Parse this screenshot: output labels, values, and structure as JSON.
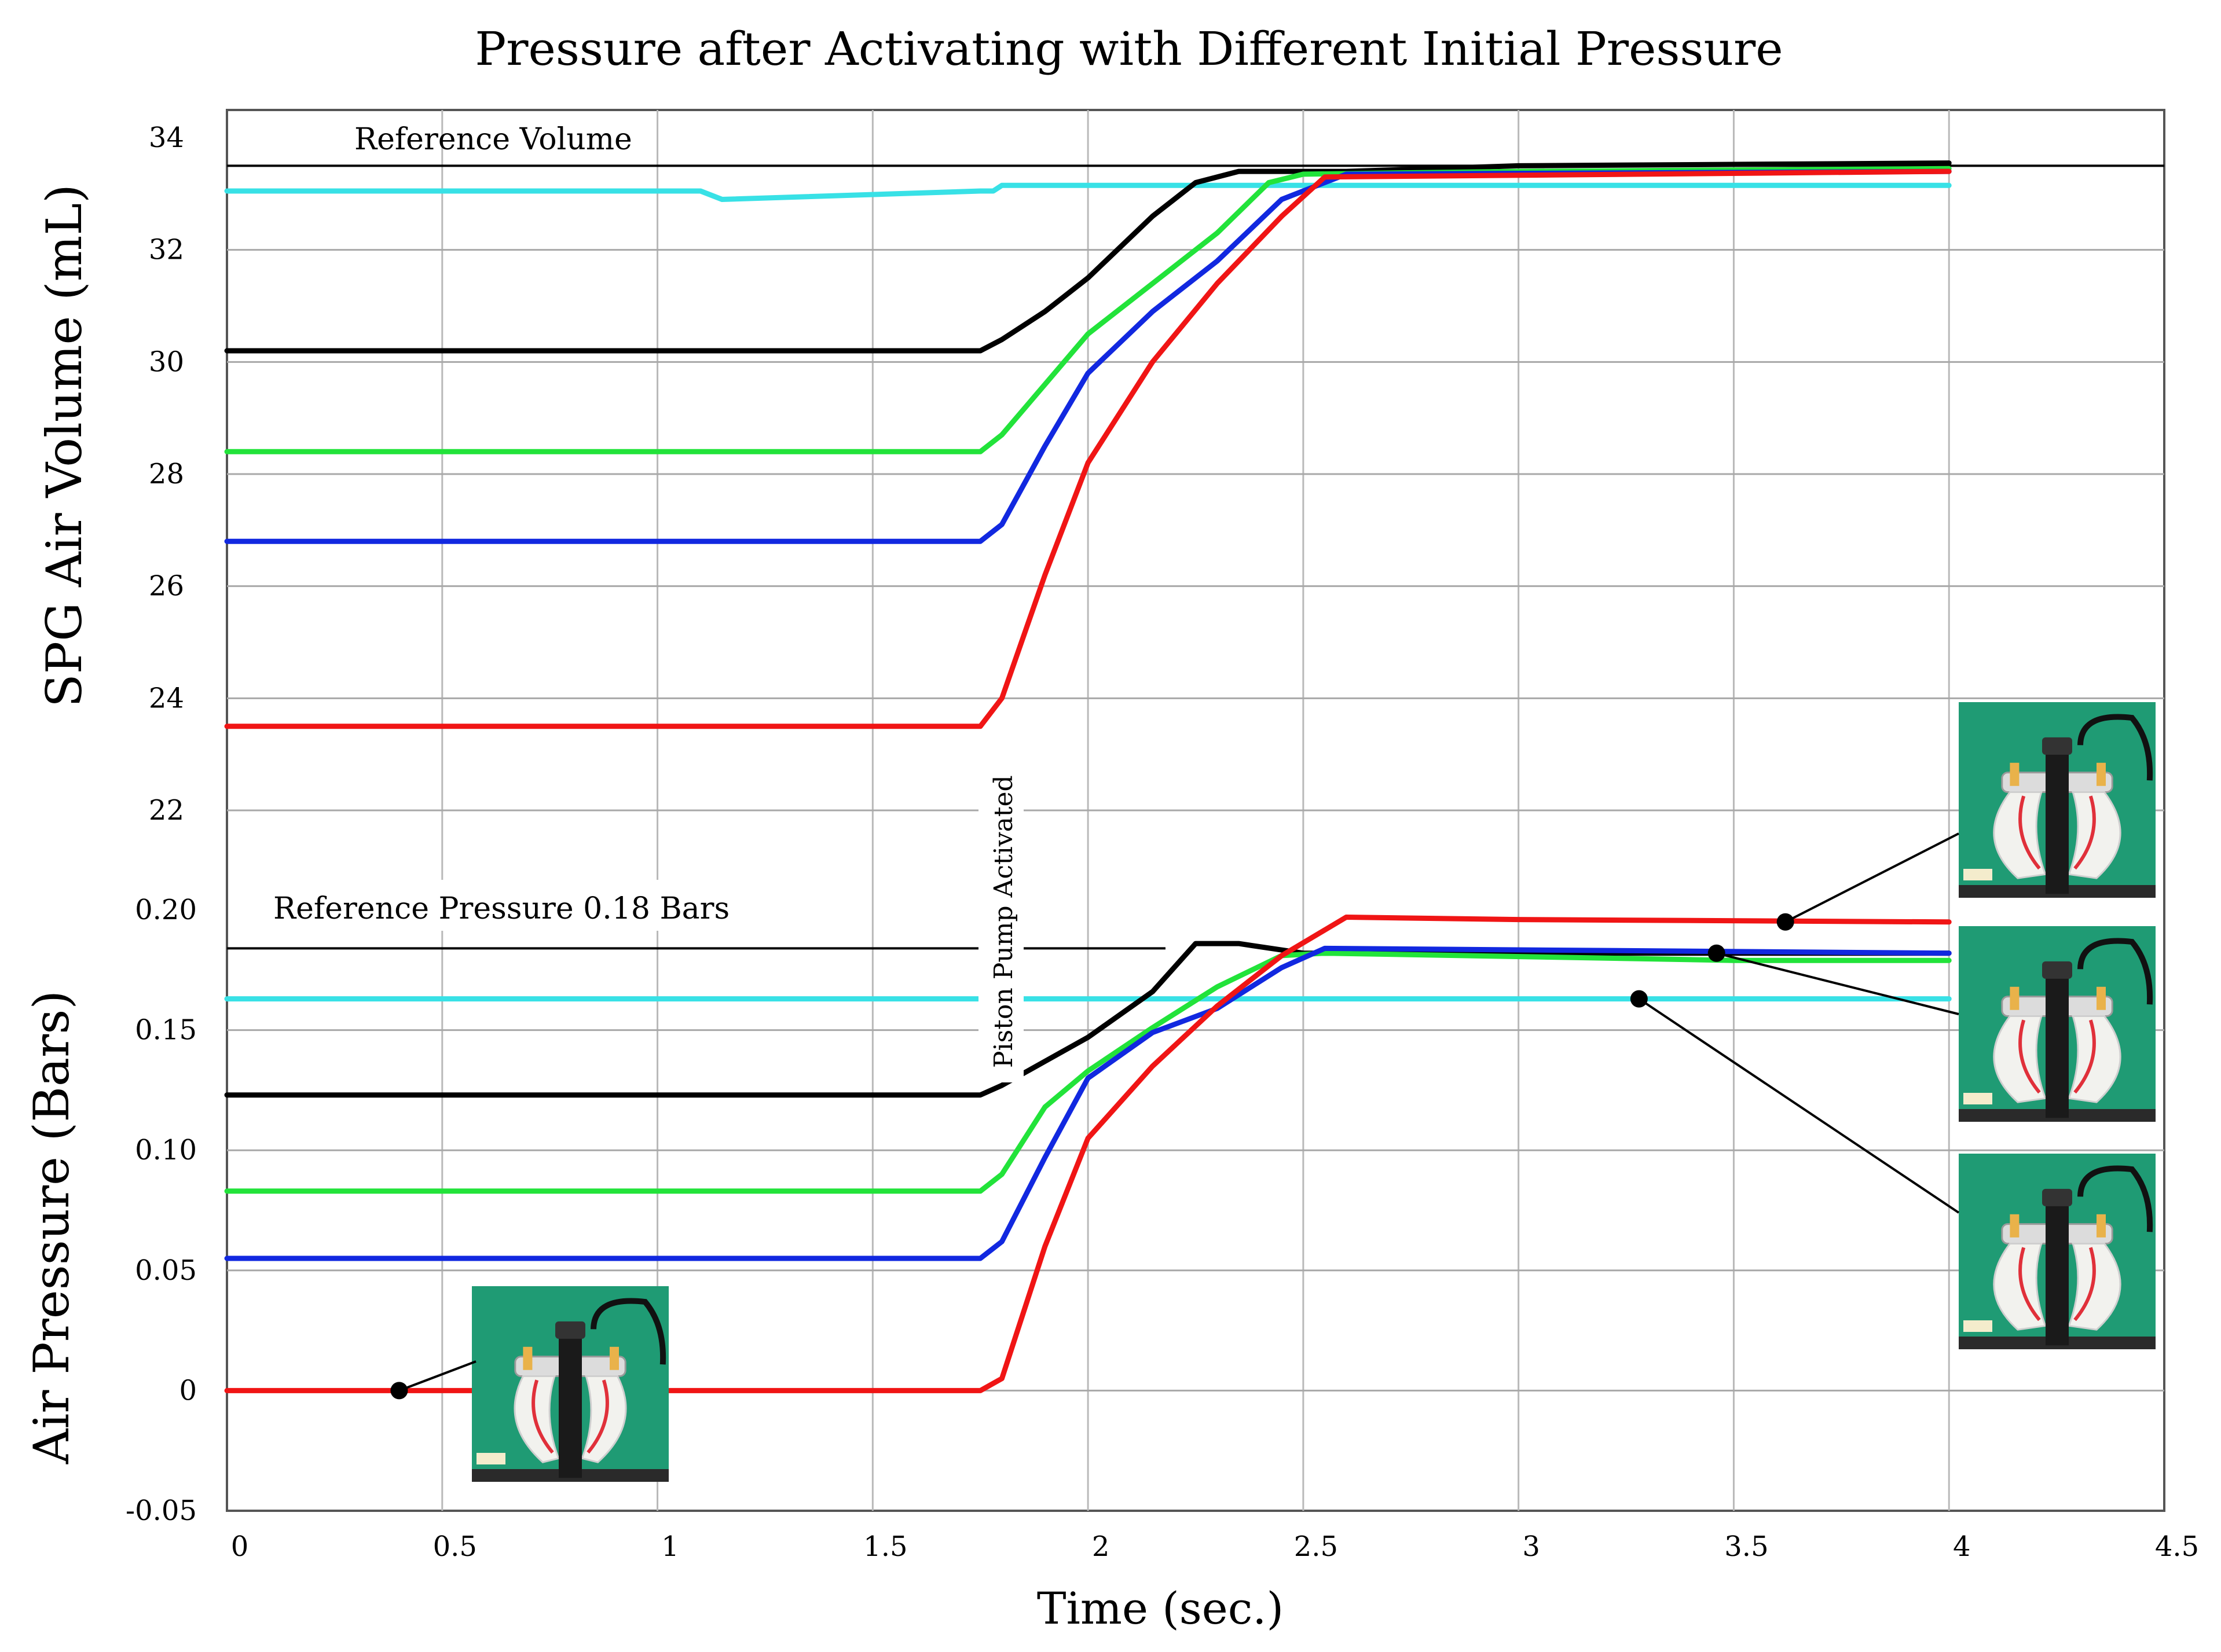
{
  "chart_data": {
    "type": "line",
    "title": "Pressure after Activating with Different Initial Pressure",
    "xlabel": "Time (sec.)",
    "xlim": [
      0,
      4.5
    ],
    "xticks": [
      "0",
      "0.5",
      "1",
      "1.5",
      "2",
      "2.5",
      "3",
      "3.5",
      "4",
      "4.5"
    ],
    "volume_panel": {
      "ylabel": "SPG Air Volume (mL)",
      "ylim": [
        22,
        34
      ],
      "yticks": [
        "22",
        "24",
        "26",
        "28",
        "30",
        "32",
        "34"
      ],
      "reference": {
        "label": "Reference Volume",
        "value": 33.5
      },
      "series": [
        {
          "name": "cyan",
          "color": "#38e1e6",
          "x": [
            0,
            1.1,
            1.15,
            1.75,
            1.78,
            1.8,
            4.0
          ],
          "y": [
            33.05,
            33.05,
            32.9,
            33.05,
            33.05,
            33.15,
            33.15
          ]
        },
        {
          "name": "black",
          "color": "#000000",
          "x": [
            0,
            1.75,
            1.8,
            1.9,
            2.0,
            2.15,
            2.25,
            2.35,
            2.6,
            3.0,
            4.0
          ],
          "y": [
            30.2,
            30.2,
            30.4,
            30.9,
            31.5,
            32.6,
            33.2,
            33.4,
            33.4,
            33.5,
            33.55
          ]
        },
        {
          "name": "green",
          "color": "#22e33a",
          "x": [
            0,
            1.75,
            1.8,
            1.9,
            2.0,
            2.15,
            2.3,
            2.42,
            2.5,
            3.0,
            4.0
          ],
          "y": [
            28.4,
            28.4,
            28.7,
            29.6,
            30.5,
            31.4,
            32.3,
            33.2,
            33.35,
            33.4,
            33.45
          ]
        },
        {
          "name": "blue",
          "color": "#1128e0",
          "x": [
            0,
            1.75,
            1.8,
            1.9,
            2.0,
            2.15,
            2.3,
            2.45,
            2.6,
            4.0
          ],
          "y": [
            26.8,
            26.8,
            27.1,
            28.5,
            29.8,
            30.9,
            31.8,
            32.9,
            33.35,
            33.4
          ]
        },
        {
          "name": "red",
          "color": "#f01515",
          "x": [
            0,
            1.75,
            1.8,
            1.9,
            2.0,
            2.15,
            2.3,
            2.45,
            2.55,
            4.0
          ],
          "y": [
            23.5,
            23.5,
            24.0,
            26.2,
            28.2,
            30.0,
            31.4,
            32.6,
            33.3,
            33.4
          ]
        }
      ]
    },
    "pressure_panel": {
      "ylabel": "Air Pressure (Bars)",
      "ylim": [
        -0.05,
        0.2
      ],
      "yticks": [
        "-0.05",
        "0",
        "0.05",
        "0.10",
        "0.15",
        "0.20"
      ],
      "reference": {
        "label": "Reference  Pressure  0.18 Bars",
        "value": 0.184
      },
      "series": [
        {
          "name": "cyan",
          "color": "#38e1e6",
          "x": [
            0,
            4.0
          ],
          "y": [
            0.163,
            0.163
          ]
        },
        {
          "name": "black",
          "color": "#000000",
          "x": [
            0,
            1.75,
            1.8,
            1.9,
            2.0,
            2.15,
            2.25,
            2.35,
            2.5,
            4.0
          ],
          "y": [
            0.123,
            0.123,
            0.127,
            0.137,
            0.147,
            0.166,
            0.186,
            0.186,
            0.182,
            0.182
          ]
        },
        {
          "name": "green",
          "color": "#22e33a",
          "x": [
            0,
            1.75,
            1.8,
            1.9,
            2.0,
            2.15,
            2.3,
            2.45,
            2.55,
            3.5,
            4.0
          ],
          "y": [
            0.083,
            0.083,
            0.09,
            0.118,
            0.133,
            0.151,
            0.168,
            0.181,
            0.182,
            0.179,
            0.179
          ]
        },
        {
          "name": "blue",
          "color": "#1128e0",
          "x": [
            0,
            1.75,
            1.8,
            1.9,
            2.0,
            2.15,
            2.3,
            2.45,
            2.55,
            4.0
          ],
          "y": [
            0.055,
            0.055,
            0.062,
            0.097,
            0.13,
            0.149,
            0.159,
            0.176,
            0.184,
            0.182
          ]
        },
        {
          "name": "red",
          "color": "#f01515",
          "x": [
            0,
            1.75,
            1.8,
            1.9,
            2.0,
            2.15,
            2.3,
            2.45,
            2.6,
            3.0,
            4.0
          ],
          "y": [
            0.0,
            0.0,
            0.005,
            0.06,
            0.105,
            0.135,
            0.16,
            0.181,
            0.197,
            0.196,
            0.195
          ]
        }
      ]
    },
    "annotations": [
      {
        "text": "Piston Pump Activated",
        "x": 1.75
      }
    ]
  }
}
